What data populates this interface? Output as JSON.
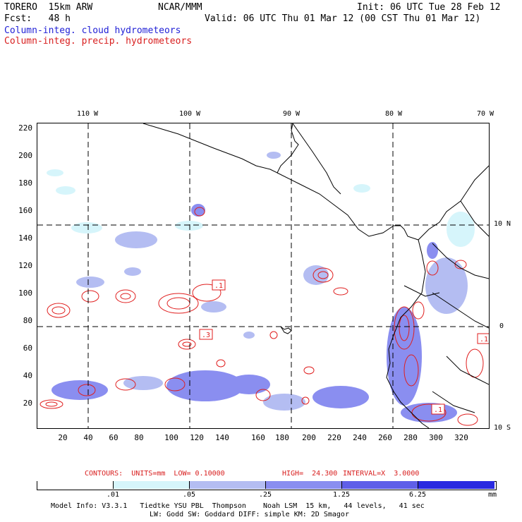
{
  "header": {
    "model": "TORERO  15km ARW",
    "org": "NCAR/MMM",
    "init": "Init: 06 UTC Tue 28 Feb 12",
    "fcst": "Fcst:   48 h",
    "valid": "Valid: 06 UTC Thu 01 Mar 12 (00 CST Thu 01 Mar 12)",
    "field1": "Column-integ. cloud hydrometeors",
    "field2": "Column-integ. precip. hydrometeors"
  },
  "axes": {
    "y_ticks": [
      "220",
      "200",
      "180",
      "160",
      "140",
      "120",
      "100",
      "80",
      "60",
      "40",
      "20"
    ],
    "x_ticks": [
      "20",
      "40",
      "60",
      "80",
      "100",
      "120",
      "140",
      "160",
      "180",
      "200",
      "220",
      "240",
      "260",
      "280",
      "300",
      "320"
    ],
    "lon_labels": [
      "110 W",
      "100 W",
      "90 W",
      "80 W",
      "70 W"
    ],
    "lat_labels": [
      "10 N",
      "0",
      "10 S"
    ]
  },
  "contour_labels": [
    ".1",
    ".3",
    ".1",
    ".1"
  ],
  "contours_text": {
    "units": "CONTOURS:  UNITS=mm  LOW= 0.10000",
    "high": "HIGH=  24.300",
    "interval": "INTERVAL=X  3.0000"
  },
  "colorbar": {
    "labels": [
      ".01",
      ".05",
      ".25",
      "1.25",
      "6.25"
    ],
    "unit": "mm",
    "colors": [
      "#ffffff",
      "#d6f5fb",
      "#b4bdf2",
      "#8a8ef0",
      "#5f5fe8",
      "#2a2ae0"
    ]
  },
  "footer": {
    "line1": "Model Info: V3.3.1   Tiedtke YSU PBL  Thompson    Noah LSM  15 km,   44 levels,   41 sec",
    "line2": "LW: Godd SW: Goddard DIFF: simple KM: 2D Smagor"
  }
}
